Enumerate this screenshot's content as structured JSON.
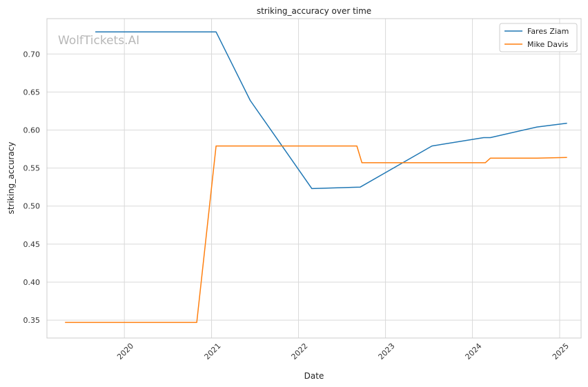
{
  "chart_data": {
    "type": "line",
    "title": "striking_accuracy over time",
    "xlabel": "Date",
    "ylabel": "striking_accuracy",
    "watermark": "WolfTickets.AI",
    "x_ticks": [
      "2020",
      "2021",
      "2022",
      "2023",
      "2024",
      "2025"
    ],
    "y_ticks": [
      "0.35",
      "0.40",
      "0.45",
      "0.50",
      "0.55",
      "0.60",
      "0.65",
      "0.70"
    ],
    "xlim": [
      "2019-02-10",
      "2025-04-01"
    ],
    "ylim": [
      0.3265,
      0.7465
    ],
    "grid": true,
    "legend_position": "top-right",
    "series": [
      {
        "name": "Fares Ziam",
        "color": "#1f77b4",
        "points": [
          [
            "2019-09-01",
            0.729
          ],
          [
            "2021-01-20",
            0.729
          ],
          [
            "2021-06-12",
            0.639
          ],
          [
            "2022-02-26",
            0.523
          ],
          [
            "2022-09-17",
            0.525
          ],
          [
            "2023-07-15",
            0.579
          ],
          [
            "2024-02-17",
            0.59
          ],
          [
            "2024-03-16",
            0.59
          ],
          [
            "2024-09-28",
            0.604
          ],
          [
            "2025-02-01",
            0.609
          ]
        ]
      },
      {
        "name": "Mike Davis",
        "color": "#ff7f0e",
        "points": [
          [
            "2019-04-27",
            0.347
          ],
          [
            "2020-10-31",
            0.347
          ],
          [
            "2021-01-20",
            0.579
          ],
          [
            "2022-09-03",
            0.579
          ],
          [
            "2022-09-24",
            0.557
          ],
          [
            "2024-02-24",
            0.557
          ],
          [
            "2024-03-16",
            0.563
          ],
          [
            "2024-09-28",
            0.563
          ],
          [
            "2025-02-01",
            0.564
          ]
        ]
      }
    ]
  }
}
